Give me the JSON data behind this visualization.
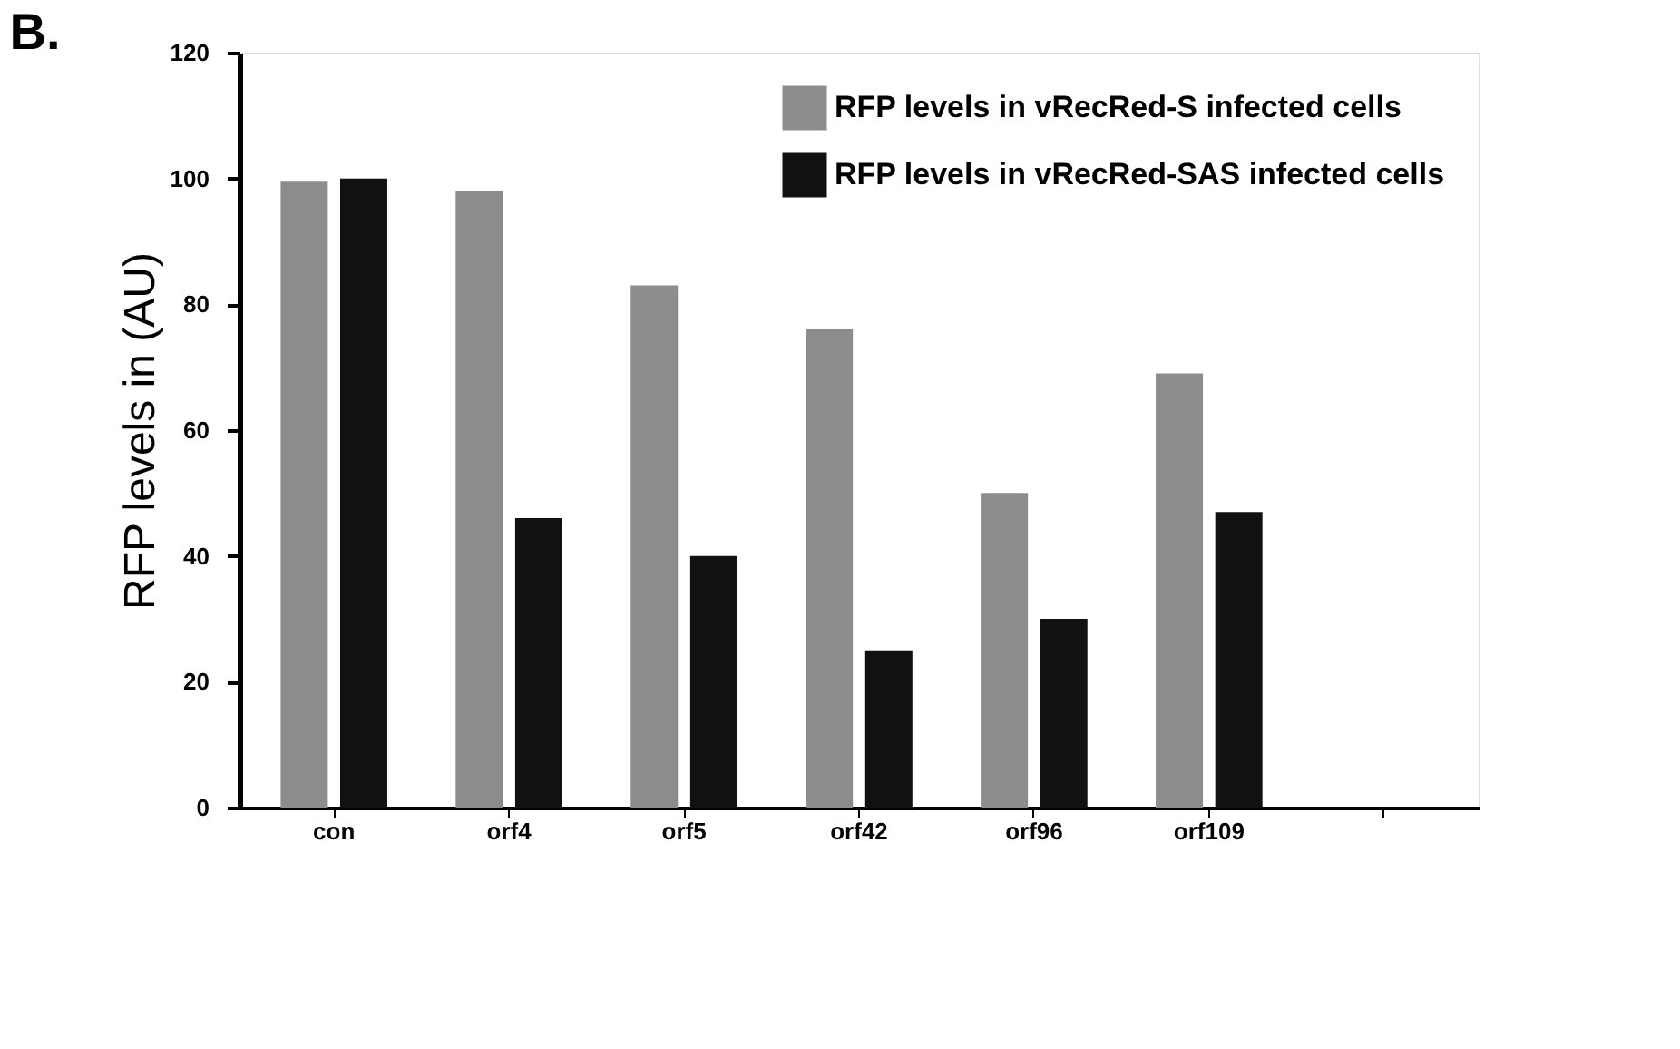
{
  "chart_data": {
    "type": "bar",
    "title": "B.",
    "ylabel": "RFP levels in (AU)",
    "categories": [
      "con",
      "orf4",
      "orf5",
      "orf42",
      "orf96",
      "orf109",
      null
    ],
    "series": [
      {
        "name": "RFP levels in vRecRed-S infected cells",
        "color": "#8c8c8c",
        "values": [
          99.5,
          98,
          83,
          76,
          50,
          69,
          null
        ]
      },
      {
        "name": "RFP levels in vRecRed-SAS infected cells",
        "color": "#111111",
        "values": [
          100,
          46,
          40,
          25,
          30,
          47,
          null
        ]
      }
    ],
    "ylim": [
      0,
      120
    ],
    "yticks": [
      0,
      20,
      40,
      60,
      80,
      100,
      120
    ],
    "grid": false,
    "legend": "top right"
  }
}
